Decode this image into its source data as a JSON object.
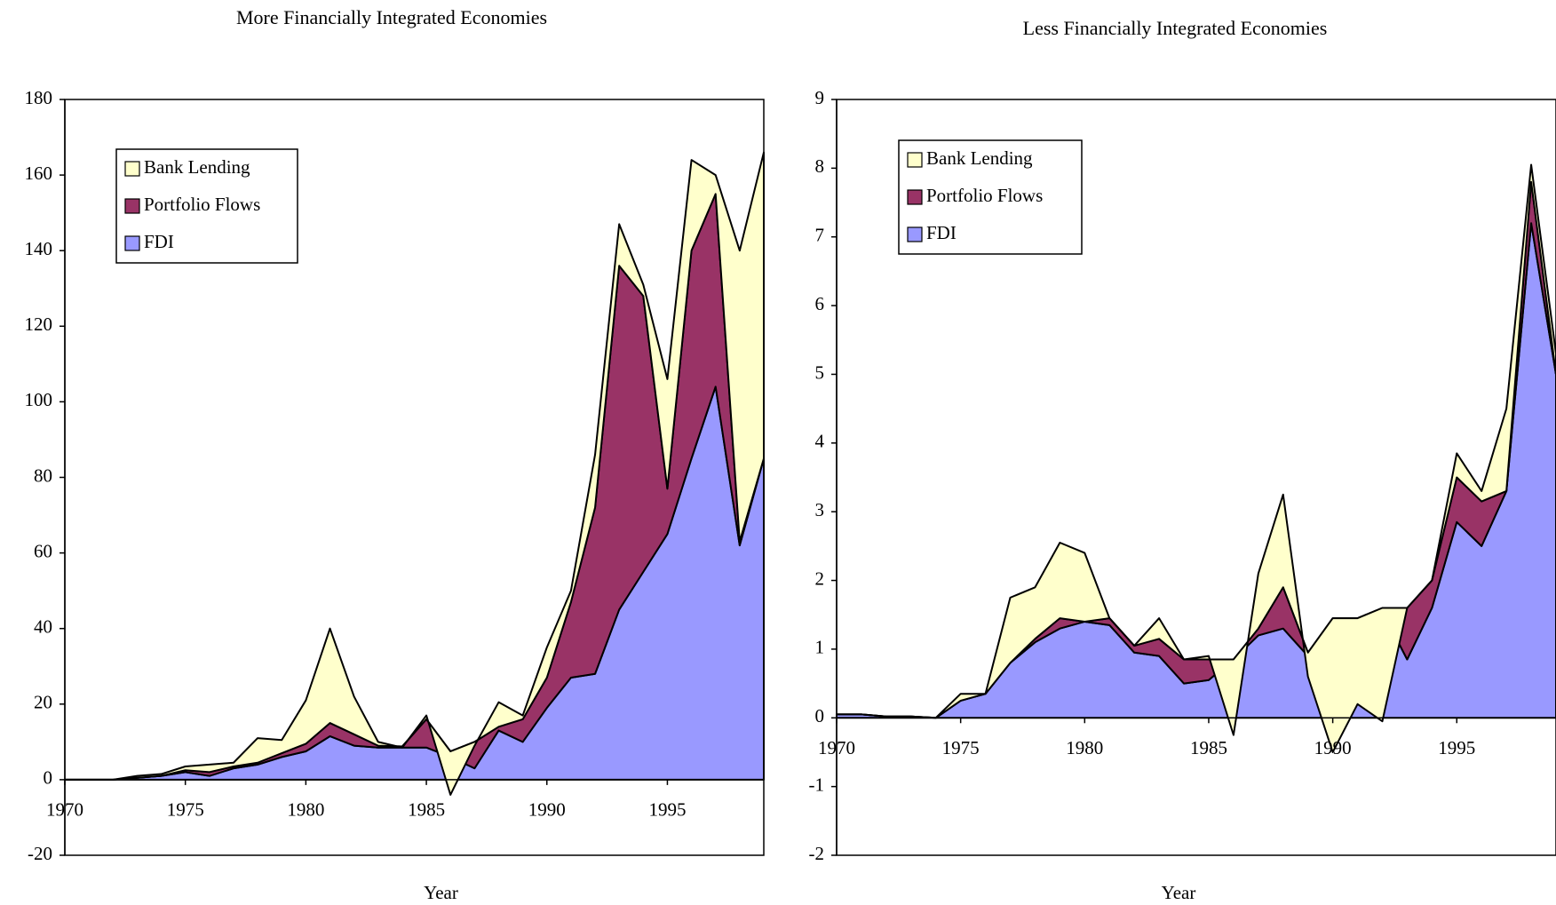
{
  "chart_data": [
    {
      "type": "stacked_area",
      "title": "More Financially Integrated Economies",
      "xlabel": "Year",
      "x": [
        1970,
        1971,
        1972,
        1973,
        1974,
        1975,
        1976,
        1977,
        1978,
        1979,
        1980,
        1981,
        1982,
        1983,
        1984,
        1985,
        1986,
        1987,
        1988,
        1989,
        1990,
        1991,
        1992,
        1993,
        1994,
        1995,
        1996,
        1997,
        1998,
        1999
      ],
      "series": [
        {
          "name": "FDI",
          "color": "#9999ff",
          "values": [
            0,
            0,
            0,
            0.5,
            1,
            2,
            1,
            3,
            4,
            6,
            7.5,
            11.5,
            9,
            8.5,
            8.5,
            8.5,
            6,
            3,
            13,
            10,
            19,
            27,
            28,
            45,
            55,
            65,
            85,
            104,
            62,
            85
          ]
        },
        {
          "name": "Portfolio Flows",
          "color": "#993366",
          "values": [
            0,
            0,
            0,
            0,
            0,
            0.5,
            1,
            0.5,
            0.5,
            1,
            2,
            3.5,
            3,
            0.5,
            0.3,
            7.5,
            1.5,
            7,
            1,
            6,
            8,
            20,
            44,
            91,
            73,
            12,
            55,
            51,
            1,
            0
          ]
        },
        {
          "name": "Bank Lending",
          "color": "#ffffcc",
          "values": [
            0,
            0,
            0,
            0.5,
            0.5,
            1,
            2,
            1,
            6.5,
            3.5,
            11.5,
            25,
            10,
            1,
            -0.3,
            1,
            -11.5,
            -1,
            6.5,
            1,
            8,
            3,
            14,
            11,
            3,
            29,
            24,
            5,
            77,
            81
          ]
        }
      ],
      "xlim": [
        1970,
        1999
      ],
      "xticks": [
        1970,
        1975,
        1980,
        1985,
        1990,
        1995
      ],
      "ylim": [
        -20,
        180
      ],
      "yticks": [
        -20,
        0,
        20,
        40,
        60,
        80,
        100,
        120,
        140,
        160,
        180
      ],
      "legend": "upper left"
    },
    {
      "type": "stacked_area",
      "title": "Less Financially Integrated Economies",
      "xlabel": "Year",
      "x": [
        1970,
        1971,
        1972,
        1973,
        1974,
        1975,
        1976,
        1977,
        1978,
        1979,
        1980,
        1981,
        1982,
        1983,
        1984,
        1985,
        1986,
        1987,
        1988,
        1989,
        1990,
        1991,
        1992,
        1993,
        1994,
        1995,
        1996,
        1997,
        1998,
        1999
      ],
      "series": [
        {
          "name": "FDI",
          "color": "#9999ff",
          "values": [
            0.05,
            0.05,
            0.02,
            0.02,
            0,
            0.25,
            0.35,
            0.8,
            1.1,
            1.3,
            1.4,
            1.35,
            0.95,
            0.9,
            0.5,
            0.55,
            0.85,
            1.2,
            1.3,
            0.9,
            1.3,
            1.3,
            1.55,
            0.85,
            1.6,
            2.85,
            2.5,
            3.3,
            7.2,
            5
          ]
        },
        {
          "name": "Portfolio Flows",
          "color": "#993366",
          "values": [
            0,
            0,
            0,
            0,
            0,
            0,
            0,
            0,
            0.05,
            0.15,
            0,
            0.1,
            0.1,
            0.25,
            0.35,
            0.3,
            0,
            0.1,
            0.6,
            0.05,
            0.15,
            0.15,
            0.05,
            0.75,
            0.4,
            0.65,
            0.65,
            0,
            0.6,
            0
          ]
        },
        {
          "name": "Bank Lending",
          "color": "#ffffcc",
          "values": [
            0,
            0,
            0,
            0,
            0,
            0.1,
            0,
            0.95,
            0.75,
            1.1,
            1,
            0,
            0,
            0.3,
            0,
            0.05,
            -1.1,
            0.8,
            1.35,
            -0.35,
            -1.95,
            -1.25,
            -1.65,
            0,
            0,
            0.35,
            0.15,
            1.2,
            0.25,
            0.3
          ]
        }
      ],
      "xlim": [
        1970,
        1999
      ],
      "xticks": [
        1970,
        1975,
        1980,
        1985,
        1990,
        1995
      ],
      "ylim": [
        -2,
        9
      ],
      "yticks": [
        -2,
        -1,
        0,
        1,
        2,
        3,
        4,
        5,
        6,
        7,
        8,
        9
      ],
      "legend": "upper left"
    }
  ]
}
